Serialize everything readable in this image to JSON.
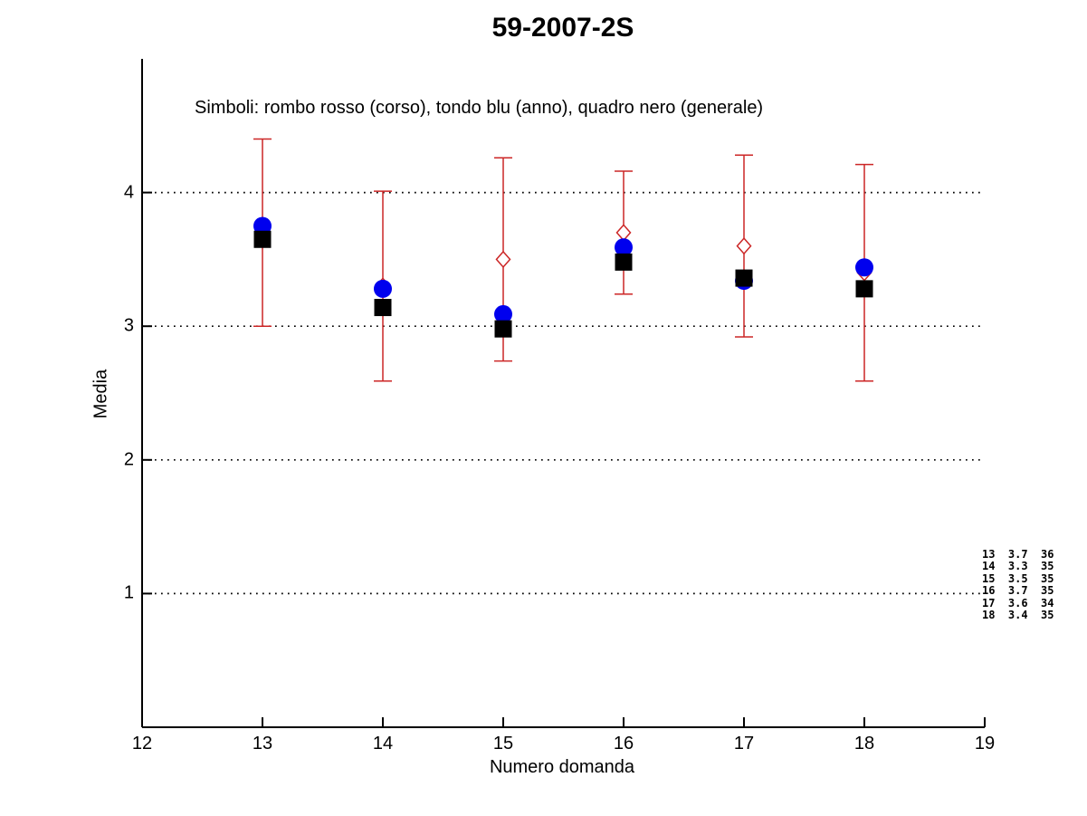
{
  "title": "59-2007-2S",
  "legend_note": "Simboli: rombo rosso (corso), tondo blu (anno), quadro nero (generale)",
  "xlabel": "Numero domanda",
  "ylabel": "Media",
  "side_table": {
    "rows": [
      [
        "13",
        "3.7",
        "36"
      ],
      [
        "14",
        "3.3",
        "35"
      ],
      [
        "15",
        "3.5",
        "35"
      ],
      [
        "16",
        "3.7",
        "35"
      ],
      [
        "17",
        "3.6",
        "34"
      ],
      [
        "18",
        "3.4",
        "35"
      ]
    ]
  },
  "chart_data": {
    "type": "scatter",
    "title": "59-2007-2S",
    "xlabel": "Numero domanda",
    "ylabel": "Media",
    "xlim": [
      12,
      19
    ],
    "ylim": [
      0,
      5
    ],
    "xticks": [
      12,
      13,
      14,
      15,
      16,
      17,
      18,
      19
    ],
    "yticks": [
      1,
      2,
      3,
      4
    ],
    "grid": "horizontal-dotted-black",
    "x": [
      13,
      14,
      15,
      16,
      17,
      18
    ],
    "series": [
      {
        "name": "corso",
        "label": "rombo rosso (corso)",
        "marker": "open-diamond",
        "color": "#cc2626",
        "values": [
          3.7,
          3.3,
          3.5,
          3.7,
          3.6,
          3.4
        ],
        "err": [
          0.7,
          0.71,
          0.76,
          0.46,
          0.68,
          0.81
        ]
      },
      {
        "name": "anno",
        "label": "tondo blu (anno)",
        "marker": "filled-circle",
        "color": "#0000ee",
        "values": [
          3.75,
          3.28,
          3.09,
          3.59,
          3.34,
          3.44
        ]
      },
      {
        "name": "generale",
        "label": "quadro nero (generale)",
        "marker": "filled-square",
        "color": "#000000",
        "values": [
          3.65,
          3.14,
          2.98,
          3.48,
          3.36,
          3.28
        ]
      }
    ]
  }
}
